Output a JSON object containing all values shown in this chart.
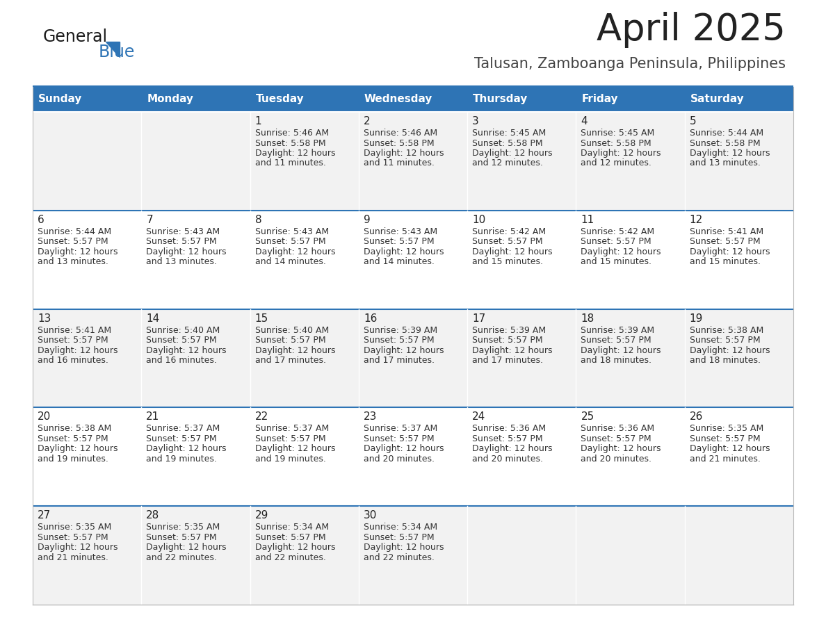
{
  "title": "April 2025",
  "subtitle": "Talusan, Zamboanga Peninsula, Philippines",
  "days_of_week": [
    "Sunday",
    "Monday",
    "Tuesday",
    "Wednesday",
    "Thursday",
    "Friday",
    "Saturday"
  ],
  "header_bg": "#2E74B5",
  "header_text": "#FFFFFF",
  "row_bg_odd": "#F2F2F2",
  "row_bg_even": "#FFFFFF",
  "divider_color": "#2E74B5",
  "title_color": "#222222",
  "subtitle_color": "#444444",
  "cell_text_color": "#333333",
  "calendar": [
    [
      {
        "day": "",
        "sunrise": "",
        "sunset": "",
        "daylight_min": ""
      },
      {
        "day": "",
        "sunrise": "",
        "sunset": "",
        "daylight_min": ""
      },
      {
        "day": "1",
        "sunrise": "5:46 AM",
        "sunset": "5:58 PM",
        "daylight_min": "11 minutes."
      },
      {
        "day": "2",
        "sunrise": "5:46 AM",
        "sunset": "5:58 PM",
        "daylight_min": "11 minutes."
      },
      {
        "day": "3",
        "sunrise": "5:45 AM",
        "sunset": "5:58 PM",
        "daylight_min": "12 minutes."
      },
      {
        "day": "4",
        "sunrise": "5:45 AM",
        "sunset": "5:58 PM",
        "daylight_min": "12 minutes."
      },
      {
        "day": "5",
        "sunrise": "5:44 AM",
        "sunset": "5:58 PM",
        "daylight_min": "13 minutes."
      }
    ],
    [
      {
        "day": "6",
        "sunrise": "5:44 AM",
        "sunset": "5:57 PM",
        "daylight_min": "13 minutes."
      },
      {
        "day": "7",
        "sunrise": "5:43 AM",
        "sunset": "5:57 PM",
        "daylight_min": "13 minutes."
      },
      {
        "day": "8",
        "sunrise": "5:43 AM",
        "sunset": "5:57 PM",
        "daylight_min": "14 minutes."
      },
      {
        "day": "9",
        "sunrise": "5:43 AM",
        "sunset": "5:57 PM",
        "daylight_min": "14 minutes."
      },
      {
        "day": "10",
        "sunrise": "5:42 AM",
        "sunset": "5:57 PM",
        "daylight_min": "15 minutes."
      },
      {
        "day": "11",
        "sunrise": "5:42 AM",
        "sunset": "5:57 PM",
        "daylight_min": "15 minutes."
      },
      {
        "day": "12",
        "sunrise": "5:41 AM",
        "sunset": "5:57 PM",
        "daylight_min": "15 minutes."
      }
    ],
    [
      {
        "day": "13",
        "sunrise": "5:41 AM",
        "sunset": "5:57 PM",
        "daylight_min": "16 minutes."
      },
      {
        "day": "14",
        "sunrise": "5:40 AM",
        "sunset": "5:57 PM",
        "daylight_min": "16 minutes."
      },
      {
        "day": "15",
        "sunrise": "5:40 AM",
        "sunset": "5:57 PM",
        "daylight_min": "17 minutes."
      },
      {
        "day": "16",
        "sunrise": "5:39 AM",
        "sunset": "5:57 PM",
        "daylight_min": "17 minutes."
      },
      {
        "day": "17",
        "sunrise": "5:39 AM",
        "sunset": "5:57 PM",
        "daylight_min": "17 minutes."
      },
      {
        "day": "18",
        "sunrise": "5:39 AM",
        "sunset": "5:57 PM",
        "daylight_min": "18 minutes."
      },
      {
        "day": "19",
        "sunrise": "5:38 AM",
        "sunset": "5:57 PM",
        "daylight_min": "18 minutes."
      }
    ],
    [
      {
        "day": "20",
        "sunrise": "5:38 AM",
        "sunset": "5:57 PM",
        "daylight_min": "19 minutes."
      },
      {
        "day": "21",
        "sunrise": "5:37 AM",
        "sunset": "5:57 PM",
        "daylight_min": "19 minutes."
      },
      {
        "day": "22",
        "sunrise": "5:37 AM",
        "sunset": "5:57 PM",
        "daylight_min": "19 minutes."
      },
      {
        "day": "23",
        "sunrise": "5:37 AM",
        "sunset": "5:57 PM",
        "daylight_min": "20 minutes."
      },
      {
        "day": "24",
        "sunrise": "5:36 AM",
        "sunset": "5:57 PM",
        "daylight_min": "20 minutes."
      },
      {
        "day": "25",
        "sunrise": "5:36 AM",
        "sunset": "5:57 PM",
        "daylight_min": "20 minutes."
      },
      {
        "day": "26",
        "sunrise": "5:35 AM",
        "sunset": "5:57 PM",
        "daylight_min": "21 minutes."
      }
    ],
    [
      {
        "day": "27",
        "sunrise": "5:35 AM",
        "sunset": "5:57 PM",
        "daylight_min": "21 minutes."
      },
      {
        "day": "28",
        "sunrise": "5:35 AM",
        "sunset": "5:57 PM",
        "daylight_min": "22 minutes."
      },
      {
        "day": "29",
        "sunrise": "5:34 AM",
        "sunset": "5:57 PM",
        "daylight_min": "22 minutes."
      },
      {
        "day": "30",
        "sunrise": "5:34 AM",
        "sunset": "5:57 PM",
        "daylight_min": "22 minutes."
      },
      {
        "day": "",
        "sunrise": "",
        "sunset": "",
        "daylight_min": ""
      },
      {
        "day": "",
        "sunrise": "",
        "sunset": "",
        "daylight_min": ""
      },
      {
        "day": "",
        "sunrise": "",
        "sunset": "",
        "daylight_min": ""
      }
    ]
  ]
}
